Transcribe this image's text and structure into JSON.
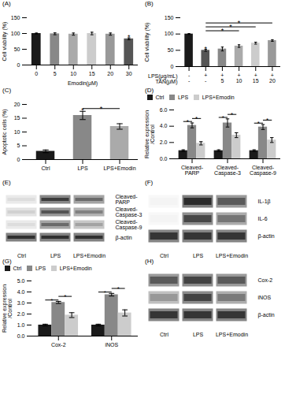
{
  "chart_data": [
    {
      "type": "bar",
      "title": "(A)",
      "xlabel": "Emodin(μM)",
      "ylabel": "Cell viability (%)",
      "categories": [
        "0",
        "5",
        "10",
        "15",
        "20",
        "30"
      ],
      "values": [
        100,
        99,
        98,
        100,
        98,
        83
      ],
      "errors": [
        1.5,
        3,
        3.5,
        4,
        3.5,
        3
      ],
      "colors": [
        "#1a1a1a",
        "#888888",
        "#aaaaaa",
        "#cccccc",
        "#999999",
        "#555555"
      ],
      "ylim": [
        0,
        150
      ],
      "yticks": [
        0,
        50,
        100,
        150
      ],
      "annotations": [
        {
          "text": "*",
          "index": 5
        }
      ]
    },
    {
      "type": "bar",
      "title": "(B)",
      "ylabel": "Cell viability (%)",
      "category_rows": [
        {
          "name": "LPS(μg/mL)",
          "labels": [
            "-",
            "+",
            "+",
            "+",
            "+",
            "+"
          ]
        },
        {
          "name": "TAN(μM)",
          "labels": [
            "-",
            "-",
            "5",
            "10",
            "15",
            "20"
          ]
        }
      ],
      "values": [
        100,
        50,
        54,
        63,
        72,
        80
      ],
      "errors": [
        1.5,
        3,
        6,
        4,
        3,
        2.5
      ],
      "colors": [
        "#1a1a1a",
        "#555555",
        "#888888",
        "#aaaaaa",
        "#cccccc",
        "#999999"
      ],
      "ylim": [
        0,
        150
      ],
      "yticks": [
        0,
        50,
        100,
        150
      ],
      "annotations": [
        {
          "text": "*",
          "index": 1
        }
      ],
      "sig_lines": [
        {
          "from": 1,
          "to": 3,
          "y": 110,
          "text": "*"
        },
        {
          "from": 1,
          "to": 4,
          "y": 122,
          "text": "*"
        },
        {
          "from": 1,
          "to": 5,
          "y": 134,
          "text": "*"
        }
      ]
    },
    {
      "type": "bar",
      "title": "(C)",
      "ylabel": "Apoptotic cells (%)",
      "categories": [
        "Ctrl",
        "LPS",
        "LPS+Emodin"
      ],
      "values": [
        3,
        16,
        12
      ],
      "errors": [
        0.5,
        1.5,
        1.0
      ],
      "colors": [
        "#1a1a1a",
        "#888888",
        "#aaaaaa"
      ],
      "ylim": [
        0,
        20
      ],
      "yticks": [
        0,
        5,
        10,
        15,
        20
      ],
      "annotations": [
        {
          "text": "*",
          "index": 1
        }
      ],
      "sig_lines": [
        {
          "from": 1,
          "to": 2,
          "y": 18.5,
          "text": "*"
        }
      ]
    },
    {
      "type": "bar",
      "title": "(D)",
      "ylabel": "Relative expression\n/Control",
      "categories": [
        "Cleaved-\nPARP",
        "Cleaved-\nCaspase-3",
        "Cleaved-\nCaspase-9"
      ],
      "series": [
        {
          "name": "Ctrl",
          "color": "#1a1a1a",
          "values": [
            1.0,
            1.0,
            1.0
          ],
          "errors": [
            0.1,
            0.1,
            0.1
          ]
        },
        {
          "name": "LPS",
          "color": "#888888",
          "values": [
            4.1,
            4.4,
            3.9
          ],
          "errors": [
            0.3,
            0.5,
            0.3
          ]
        },
        {
          "name": "LPS+Emodin",
          "color": "#cccccc",
          "values": [
            1.9,
            2.9,
            2.3
          ],
          "errors": [
            0.2,
            0.3,
            0.3
          ]
        }
      ],
      "ylim": [
        0,
        6
      ],
      "yticks": [
        0,
        2,
        4,
        6
      ],
      "legend": "top",
      "sig_lines": [
        {
          "index": 0,
          "from": "Ctrl",
          "to": "LPS",
          "y": 4.58,
          "text": "*"
        },
        {
          "index": 0,
          "from": "LPS",
          "to": "LPS+Emodin",
          "y": 4.95,
          "text": "*"
        },
        {
          "index": 1,
          "from": "Ctrl",
          "to": "LPS",
          "y": 5.08,
          "text": "*"
        },
        {
          "index": 1,
          "from": "LPS",
          "to": "LPS+Emodin",
          "y": 5.45,
          "text": "*"
        },
        {
          "index": 2,
          "from": "Ctrl",
          "to": "LPS",
          "y": 4.38,
          "text": "*"
        },
        {
          "index": 2,
          "from": "LPS",
          "to": "LPS+Emodin",
          "y": 4.75,
          "text": "*"
        }
      ]
    },
    {
      "type": "heatmap",
      "title": "(E)",
      "x": [
        "Ctrl",
        "LPS",
        "LPS+Emodin"
      ],
      "y": [
        "Cleaved-\nPARP",
        "Cleaved-\nCaspase-3",
        "Cleaved-\nCaspase-9",
        "β-actin"
      ],
      "cells": [
        [
          0.15,
          0.85,
          0.65
        ],
        [
          0.2,
          0.75,
          0.55
        ],
        [
          0.15,
          0.65,
          0.4
        ],
        [
          0.9,
          0.9,
          0.9
        ]
      ]
    },
    {
      "type": "heatmap",
      "title": "(F)",
      "x": [
        "Ctrl",
        "LPS",
        "LPS+Emodin"
      ],
      "y": [
        "IL-1β",
        "IL-6",
        "β-actin"
      ],
      "cells": [
        [
          0.05,
          0.92,
          0.72
        ],
        [
          0.05,
          0.8,
          0.6
        ],
        [
          0.88,
          0.88,
          0.88
        ]
      ]
    },
    {
      "type": "bar",
      "title": "(G)",
      "ylabel": "Relative expression\n/Control",
      "categories": [
        "Cox-2",
        "iNOS"
      ],
      "series": [
        {
          "name": "Ctrl",
          "color": "#1a1a1a",
          "values": [
            1.0,
            1.0
          ],
          "errors": [
            0.08,
            0.08
          ]
        },
        {
          "name": "LPS",
          "color": "#888888",
          "values": [
            3.05,
            3.75
          ],
          "errors": [
            0.1,
            0.12
          ]
        },
        {
          "name": "LPS+Emodin",
          "color": "#cccccc",
          "values": [
            1.9,
            2.1
          ],
          "errors": [
            0.22,
            0.28
          ]
        }
      ],
      "ylim": [
        0,
        5
      ],
      "yticks": [
        0,
        1,
        2,
        3,
        4,
        5
      ],
      "legend": "top",
      "sig_lines": [
        {
          "index": 0,
          "from": "Ctrl",
          "to": "LPS",
          "y": 3.27,
          "text": "*"
        },
        {
          "index": 0,
          "from": "LPS",
          "to": "LPS+Emodin",
          "y": 3.6,
          "text": "*"
        },
        {
          "index": 1,
          "from": "Ctrl",
          "to": "LPS",
          "y": 3.99,
          "text": "*"
        },
        {
          "index": 1,
          "from": "LPS",
          "to": "LPS+Emodin",
          "y": 4.32,
          "text": "*"
        }
      ]
    },
    {
      "type": "heatmap",
      "title": "(H)",
      "x": [
        "Ctrl",
        "LPS",
        "LPS+Emodin"
      ],
      "y": [
        "Cox-2",
        "iNOS",
        "β-actin"
      ],
      "cells": [
        [
          0.72,
          0.82,
          0.72
        ],
        [
          0.45,
          0.82,
          0.58
        ],
        [
          0.88,
          0.88,
          0.88
        ]
      ]
    }
  ]
}
